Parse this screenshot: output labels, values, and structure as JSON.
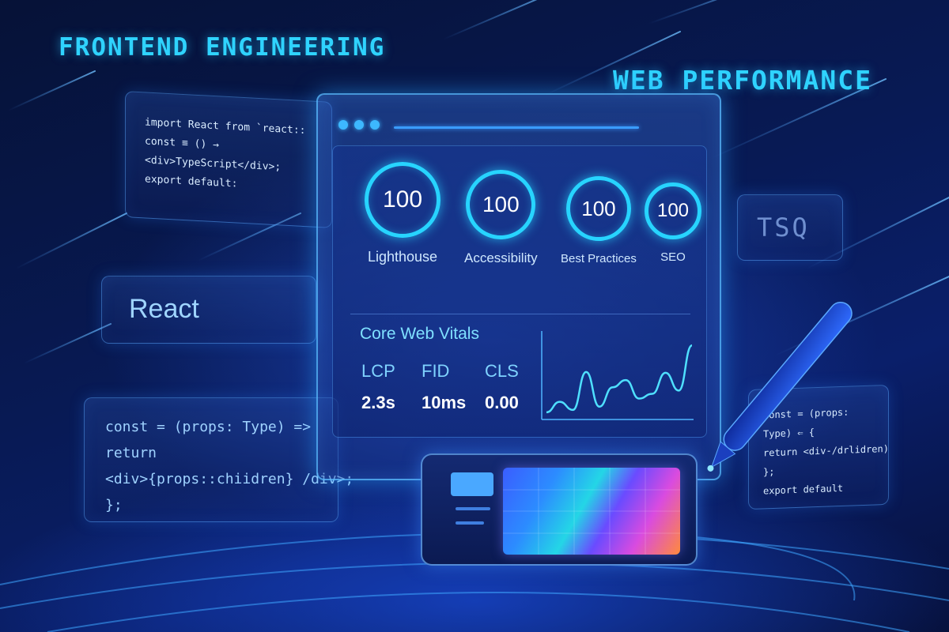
{
  "headings": {
    "left": "FRONTEND ENGINEERING",
    "right": "WEB PERFORMANCE"
  },
  "code_top": {
    "lines": [
      "import React from `react::",
      "const ≡ () →",
      "<div>TypeScript</div>;",
      "export default:"
    ]
  },
  "react_card": {
    "label": "React"
  },
  "tsq_card": {
    "label": "TSQ"
  },
  "code_bottom": {
    "lines": [
      "const = (props: Type) =>",
      "return",
      "<div>{props::chiidren} /div>;",
      "};"
    ]
  },
  "code_right": {
    "lines": [
      "const = (props:",
      "Type) ⇐ {",
      "return  <div-/drlidren)",
      "};",
      "export default"
    ]
  },
  "scores": [
    {
      "value": "100",
      "label": "Lighthouse"
    },
    {
      "value": "100",
      "label": "Accessibility"
    },
    {
      "value": "100",
      "label": "Best Practices"
    },
    {
      "value": "100",
      "label": "SEO"
    }
  ],
  "core_web_vitals": {
    "title": "Core Web Vitals",
    "metrics": [
      {
        "label": "LCP",
        "value": "2.3s"
      },
      {
        "label": "FID",
        "value": "10ms"
      },
      {
        "label": "CLS",
        "value": "0.00"
      }
    ]
  },
  "chart_data": {
    "type": "line",
    "series": [
      {
        "values": [
          5,
          18,
          8,
          55,
          12,
          36,
          45,
          22,
          28,
          54,
          32,
          88
        ]
      }
    ],
    "ylim": [
      0,
      100
    ]
  },
  "colors": {
    "accent": "#27d4ff",
    "background": "#081a55",
    "panel_border": "#5ab0ff"
  }
}
